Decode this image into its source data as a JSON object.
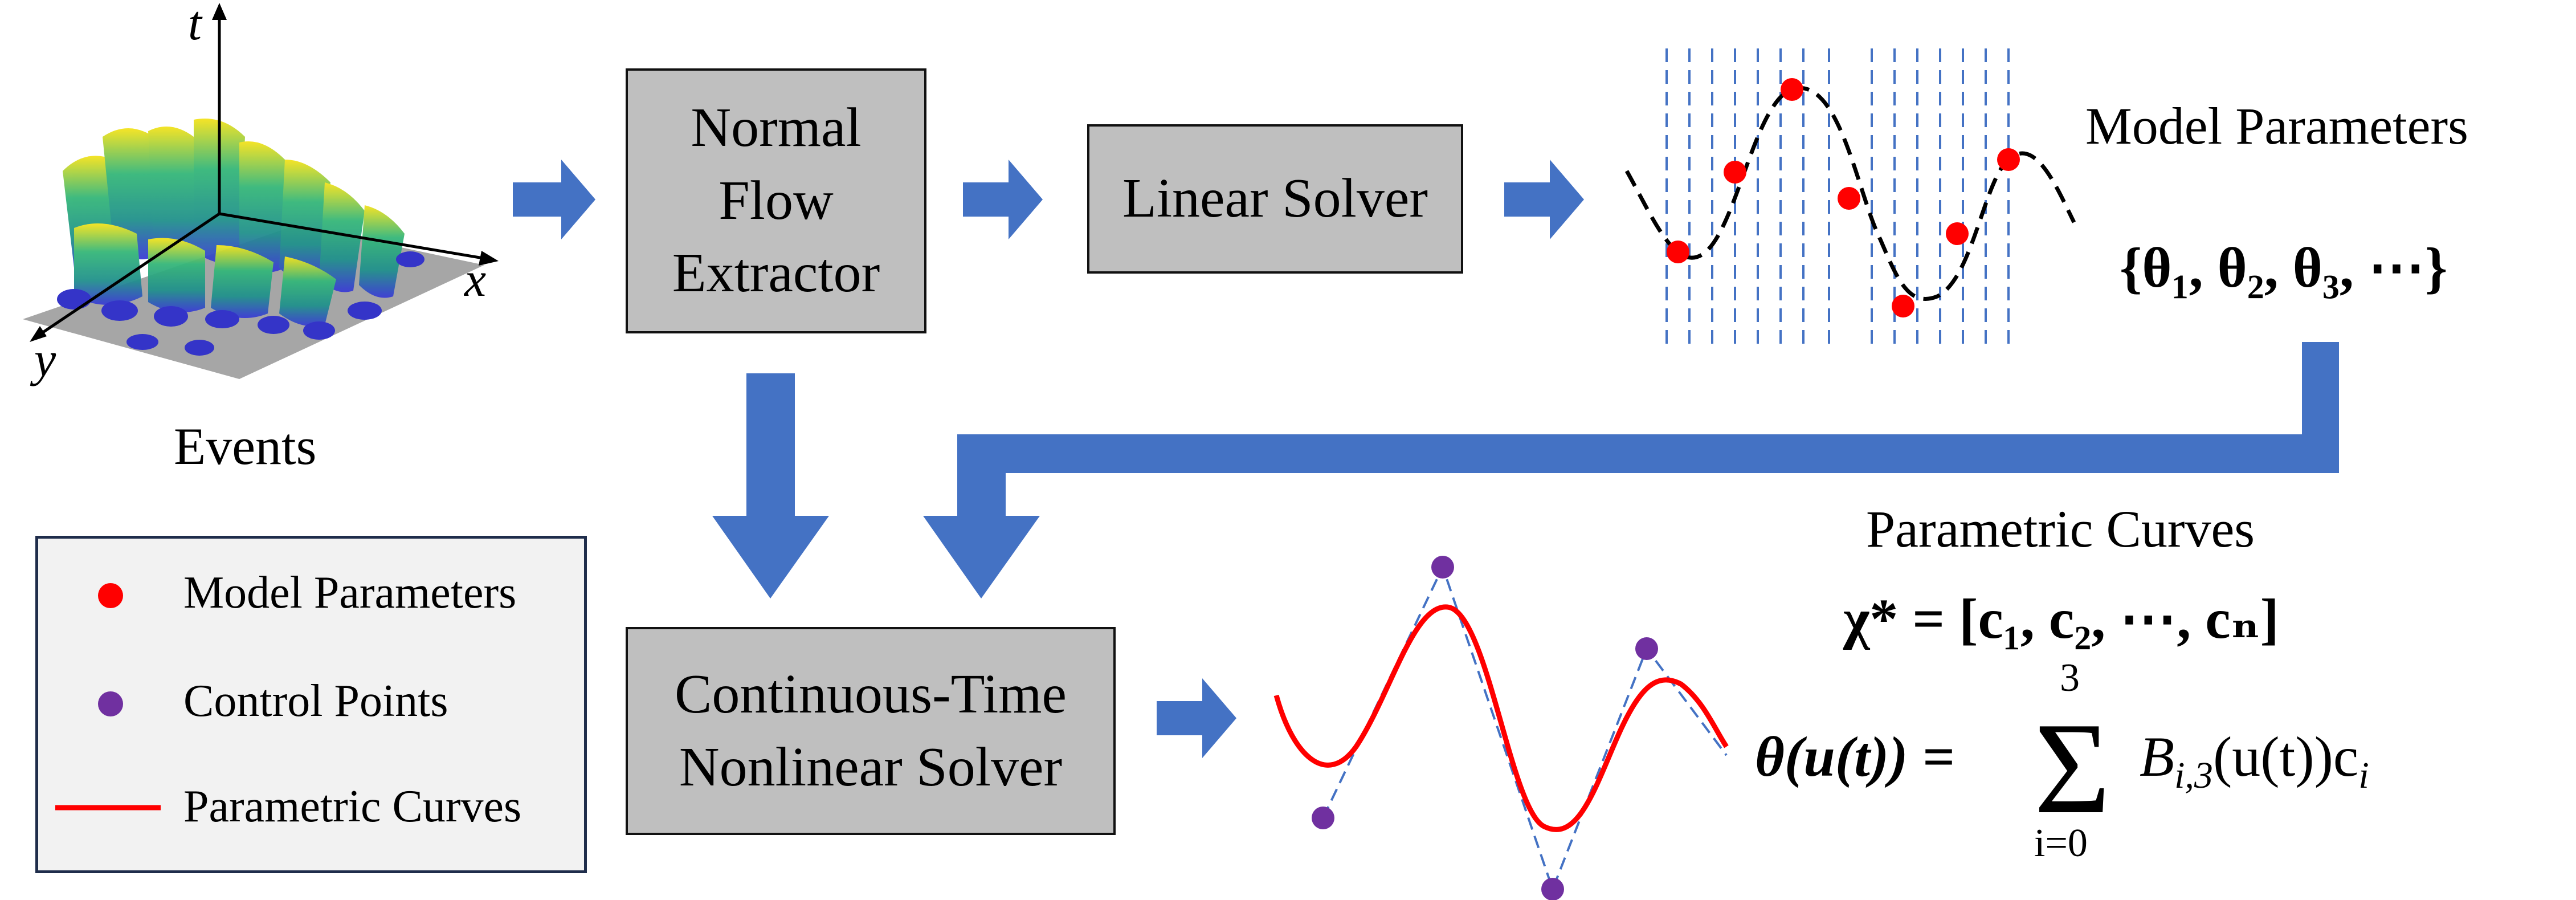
{
  "events": {
    "label": "Events",
    "axis_t": "t",
    "axis_x": "x",
    "axis_y": "y"
  },
  "boxes": {
    "normal_flow": [
      "Normal",
      "Flow",
      "Extractor"
    ],
    "linear_solver": "Linear Solver",
    "nonlinear_solver": [
      "Continuous-Time",
      "Nonlinear Solver"
    ]
  },
  "model_parameters": {
    "title": "Model Parameters",
    "set": "{θ₁, θ₂, θ₃, ⋯}"
  },
  "parametric_curves": {
    "title": "Parametric Curves",
    "chi_eq": "χ* = [c₁, c₂, ⋯, cₙ]",
    "theta_lhs": "θ(u(t)) = ",
    "sum_top": "3",
    "sum_bottom": "i=0",
    "sum_body": "B",
    "sum_sub": "i,3",
    "sum_rest": "(u(t))c",
    "sum_rest_sub": "i"
  },
  "legend": {
    "items": [
      "Model Parameters",
      "Control Points",
      "Parametric Curves"
    ]
  },
  "colors": {
    "arrow": "#4472c4",
    "box_fill": "#bfbfbf",
    "red": "#ff0000",
    "purple": "#7030a0",
    "dash_blue": "#4472c4"
  }
}
